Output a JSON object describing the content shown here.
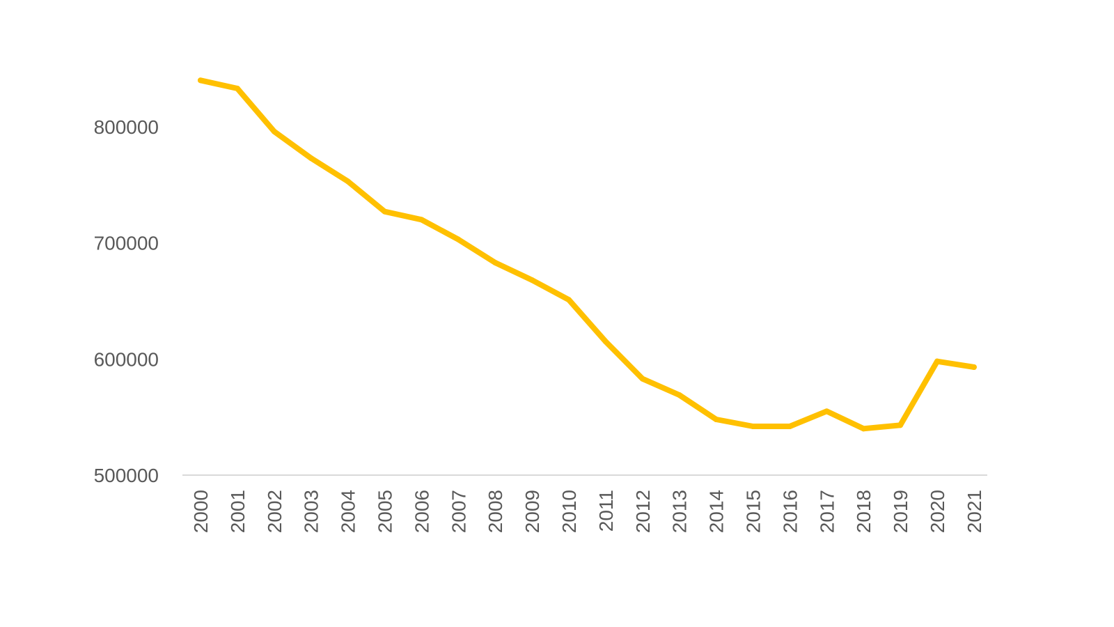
{
  "chart_data": {
    "type": "line",
    "title": "",
    "xlabel": "",
    "ylabel": "",
    "categories": [
      "2000",
      "2001",
      "2002",
      "2003",
      "2004",
      "2005",
      "2006",
      "2007",
      "2008",
      "2009",
      "2010",
      "2011",
      "2012",
      "2013",
      "2014",
      "2015",
      "2016",
      "2017",
      "2018",
      "2019",
      "2020",
      "2021"
    ],
    "series": [
      {
        "values": [
          840000,
          833000,
          796000,
          773000,
          753000,
          727000,
          720000,
          703000,
          683000,
          668000,
          651000,
          615000,
          583000,
          569000,
          548000,
          542000,
          542000,
          555000,
          540000,
          543000,
          598000,
          593000
        ],
        "color": "#FFC000"
      }
    ],
    "ylim": [
      500000,
      840000
    ],
    "yticks": [
      "500000",
      "600000",
      "700000",
      "800000"
    ],
    "ytick_values": [
      500000,
      600000,
      700000,
      800000
    ],
    "grid": false,
    "legend": "none",
    "axis_color": "#D9D9D9",
    "text_color": "#595959"
  }
}
